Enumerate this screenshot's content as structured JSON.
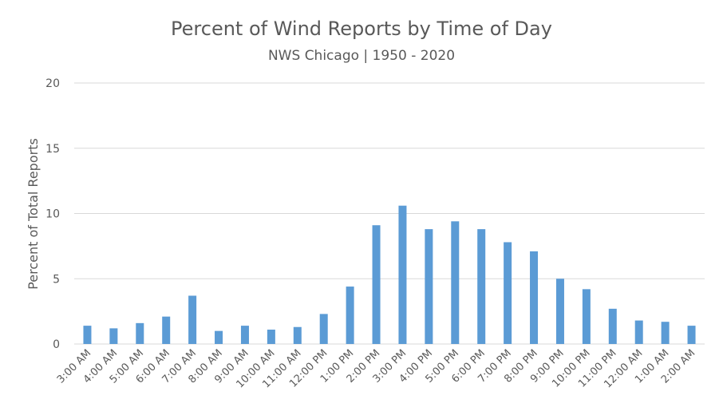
{
  "chart_data": {
    "type": "bar",
    "title": "Percent of Wind Reports by Time of Day",
    "subtitle": "NWS Chicago | 1950 - 2020",
    "xlabel": "",
    "ylabel": "Percent of Total Reports",
    "ylim": [
      0,
      20
    ],
    "yticks": [
      "0",
      "5",
      "10",
      "15",
      "20"
    ],
    "grid": true,
    "bar_color": "#5b9bd5",
    "categories": [
      "3:00 AM",
      "4:00 AM",
      "5:00 AM",
      "6:00 AM",
      "7:00 AM",
      "8:00 AM",
      "9:00 AM",
      "10:00 AM",
      "11:00 AM",
      "12:00 PM",
      "1:00 PM",
      "2:00 PM",
      "3:00 PM",
      "4:00 PM",
      "5:00 PM",
      "6:00 PM",
      "7:00 PM",
      "8:00 PM",
      "9:00 PM",
      "10:00 PM",
      "11:00 PM",
      "12:00 AM",
      "1:00 AM",
      "2:00 AM"
    ],
    "values": [
      1.4,
      1.2,
      1.6,
      2.1,
      3.7,
      1.0,
      1.4,
      1.1,
      1.3,
      2.3,
      4.4,
      9.1,
      10.6,
      8.8,
      9.4,
      8.8,
      7.8,
      7.1,
      5.0,
      4.2,
      2.7,
      1.8,
      1.7,
      1.4
    ]
  }
}
